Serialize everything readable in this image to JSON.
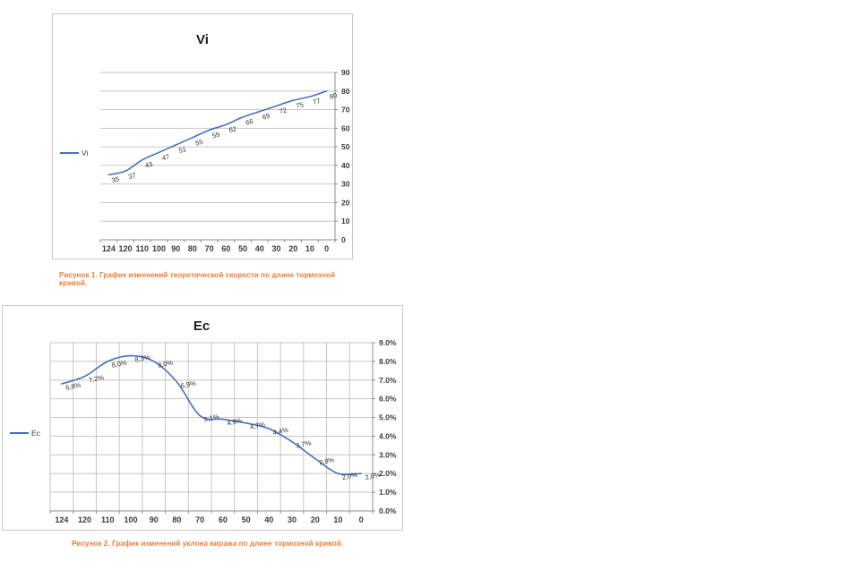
{
  "page": {
    "background": "#ffffff",
    "accent_caption_color": "#ED7D31"
  },
  "figures": [
    {
      "caption": "Рисунок 1. График изменений теоретической скорости по длине тормозной кривой."
    },
    {
      "caption": "Рисунок 2. График изменений уклона виража по длине тормозной кривой."
    }
  ],
  "chart_data": [
    {
      "id": "chart1",
      "type": "line",
      "title": "Vi",
      "legend_entries": [
        "Vi"
      ],
      "legend_position": "left",
      "categories": [
        "124",
        "120",
        "110",
        "100",
        "90",
        "80",
        "70",
        "60",
        "50",
        "40",
        "30",
        "20",
        "10",
        "0"
      ],
      "series": [
        {
          "name": "Vi",
          "values": [
            35,
            37,
            43,
            47,
            51,
            55,
            59,
            62,
            66,
            69,
            72,
            75,
            77,
            80
          ]
        }
      ],
      "data_labels": [
        "35",
        "37",
        "43",
        "47",
        "51",
        "55",
        "59",
        "62",
        "66",
        "69",
        "72",
        "75",
        "77",
        "80"
      ],
      "ylim": [
        0,
        90
      ],
      "ytick_labels": [
        "0",
        "10",
        "20",
        "30",
        "40",
        "50",
        "60",
        "70",
        "80",
        "90"
      ],
      "yaxis_side": "right",
      "x_direction": "categories run 124 to 0, left to right",
      "grid": "horizontal",
      "smooth": true,
      "line_color": "#4472C4"
    },
    {
      "id": "chart2",
      "type": "line",
      "title": "Ec",
      "legend_entries": [
        "Ec"
      ],
      "legend_position": "left",
      "categories": [
        "124",
        "120",
        "110",
        "100",
        "90",
        "80",
        "70",
        "60",
        "50",
        "40",
        "30",
        "20",
        "10",
        "0"
      ],
      "series": [
        {
          "name": "Ec",
          "values": [
            6.8,
            7.2,
            8.0,
            8.3,
            8.0,
            6.9,
            5.1,
            4.9,
            4.7,
            4.4,
            3.7,
            2.8,
            2.0,
            2.0
          ]
        }
      ],
      "data_labels": [
        "6,8%",
        "7,2%",
        "8,0%",
        "8,3%",
        "8,0%",
        "6,9%",
        "5,1%",
        "4,9%",
        "4,7%",
        "4,4%",
        "3,7%",
        "2,8%",
        "2,0%",
        "2,0%"
      ],
      "ylim": [
        0,
        9
      ],
      "ytick_labels": [
        "0.0%",
        "1.0%",
        "2.0%",
        "3.0%",
        "4.0%",
        "5.0%",
        "6.0%",
        "7.0%",
        "8.0%",
        "9.0%"
      ],
      "yaxis_side": "right",
      "x_direction": "categories run 124 to 0, left to right",
      "grid": "both",
      "smooth": true,
      "line_color": "#4472C4"
    }
  ]
}
